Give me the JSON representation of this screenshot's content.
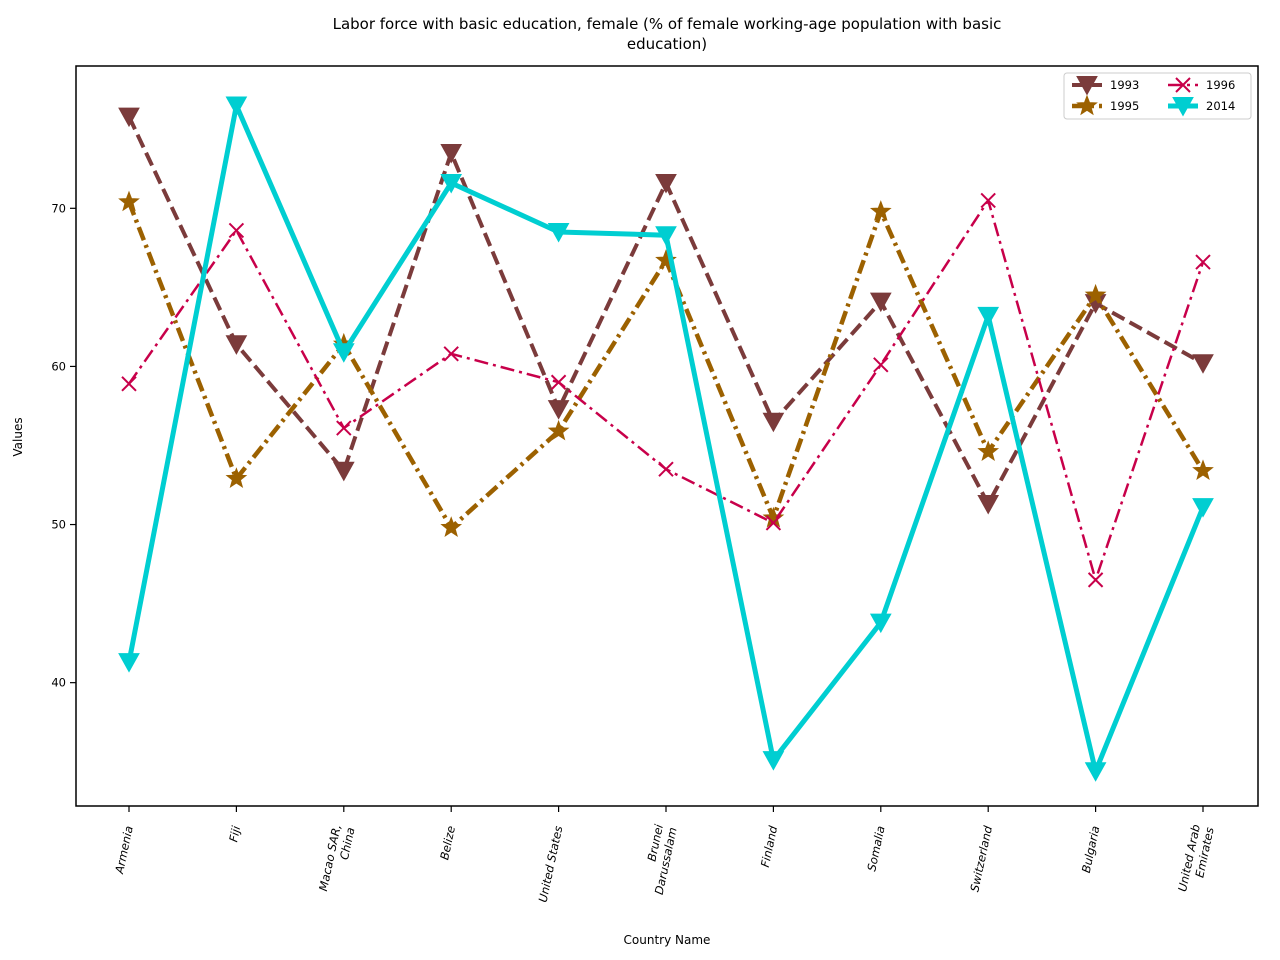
{
  "chart_data": {
    "type": "line",
    "title_lines": [
      "Labor force with basic education, female (% of female working-age population with basic",
      "education)"
    ],
    "xlabel": "Country Name",
    "ylabel": "Values",
    "categories": [
      [
        "Armenia"
      ],
      [
        "Fiji"
      ],
      [
        "Macao SAR,",
        "China"
      ],
      [
        "Belize"
      ],
      [
        "United States"
      ],
      [
        "Brunei",
        "Darussalam"
      ],
      [
        "Finland"
      ],
      [
        "Somalia"
      ],
      [
        "Switzerland"
      ],
      [
        "Bulgaria"
      ],
      [
        "United Arab",
        "Emirates"
      ]
    ],
    "y_ticks": [
      40,
      50,
      60,
      70
    ],
    "ylim": [
      32.2,
      79.0
    ],
    "grid": false,
    "legend_position": "top-right",
    "series": [
      {
        "name": "1993",
        "color": "#7b3b3b",
        "dash": "dashed",
        "marker": "triangle-down",
        "values": [
          75.8,
          61.4,
          53.4,
          73.5,
          57.3,
          71.6,
          56.5,
          64.1,
          51.3,
          64.0,
          60.2
        ]
      },
      {
        "name": "1995",
        "color": "#9c6100",
        "dash": "dash-dot",
        "marker": "star",
        "values": [
          70.4,
          52.9,
          61.4,
          49.8,
          55.9,
          66.7,
          50.4,
          69.8,
          54.6,
          64.5,
          53.4
        ]
      },
      {
        "name": "1996",
        "color": "#c8004a",
        "dash": "dash-dot",
        "marker": "x",
        "values": [
          58.9,
          68.6,
          56.1,
          60.8,
          59.0,
          53.5,
          50.1,
          60.1,
          70.5,
          46.5,
          66.6
        ]
      },
      {
        "name": "2014",
        "color": "#00ced1",
        "dash": "solid",
        "marker": "triangle-down",
        "values": [
          41.3,
          76.5,
          60.9,
          71.6,
          68.5,
          68.3,
          35.1,
          43.8,
          63.2,
          34.4,
          51.1
        ]
      }
    ]
  }
}
